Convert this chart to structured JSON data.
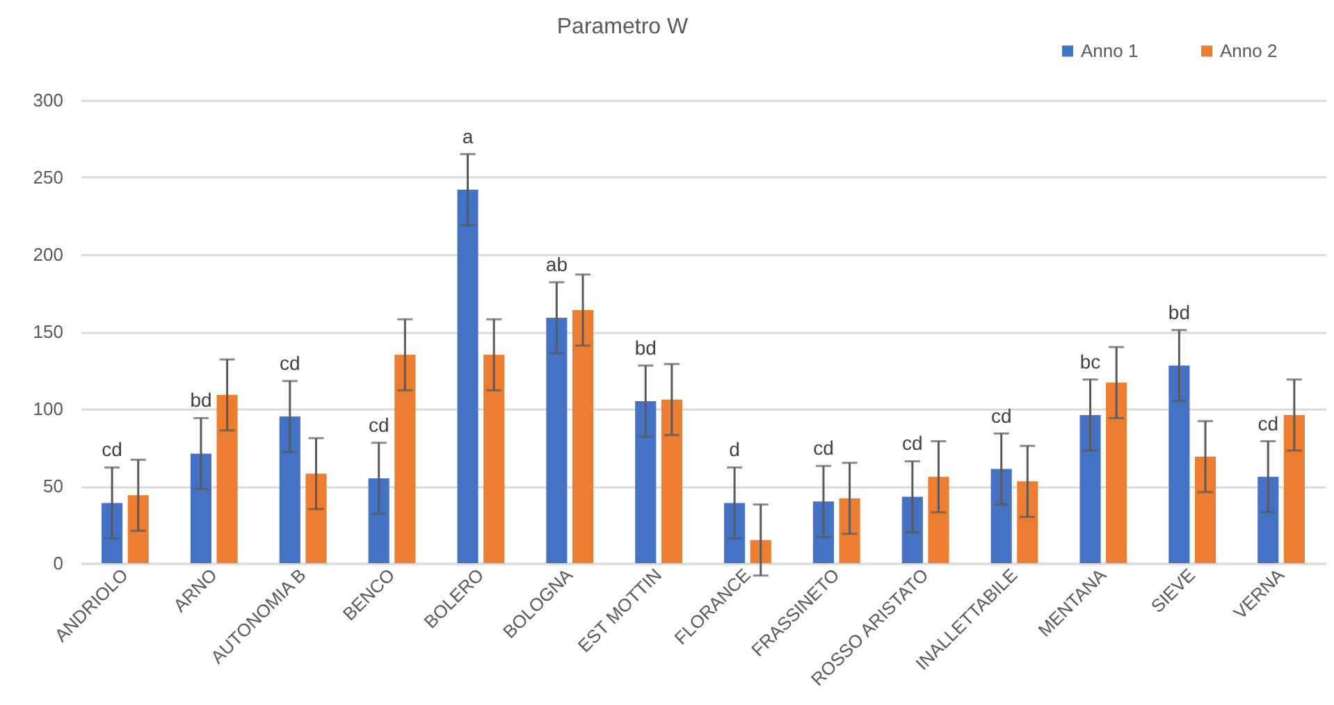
{
  "chart_data": {
    "type": "bar",
    "title": "Parametro W",
    "categories": [
      "ANDRIOLO",
      "ARNO",
      "AUTONOMIA B",
      "BENCO",
      "BOLERO",
      "BOLOGNA",
      "EST MOTTIN",
      "FLORANCE",
      "FRASSINETO",
      "ROSSO ARISTATO",
      "INALLETTABILE",
      "MENTANA",
      "SIEVE",
      "VERNA"
    ],
    "series": [
      {
        "name": "Anno 1",
        "color": "#4472c4",
        "values": [
          39,
          71,
          95,
          55,
          242,
          159,
          105,
          39,
          40,
          43,
          61,
          96,
          128,
          56
        ],
        "errors": [
          23,
          23,
          23,
          23,
          23,
          23,
          23,
          23,
          23,
          23,
          23,
          23,
          23,
          23
        ]
      },
      {
        "name": "Anno 2",
        "color": "#ed7d31",
        "values": [
          44,
          109,
          58,
          135,
          135,
          164,
          106,
          15,
          42,
          56,
          53,
          117,
          69,
          96
        ],
        "errors": [
          23,
          23,
          23,
          23,
          23,
          23,
          23,
          23,
          23,
          23,
          23,
          23,
          23,
          23
        ]
      }
    ],
    "ylim": [
      0,
      300
    ],
    "yticks": [
      0,
      50,
      100,
      150,
      200,
      250,
      300
    ],
    "grid": "y",
    "legend": "top right",
    "annotations": [
      {
        "text": "cd",
        "x": "ANDRIOLO",
        "y": 39
      },
      {
        "text": "bd",
        "x": "ARNO",
        "y": 71
      },
      {
        "text": "cd",
        "x": "AUTONOMIA B",
        "y": 95
      },
      {
        "text": "cd",
        "x": "BENCO",
        "y": 55
      },
      {
        "text": "a",
        "x": "BOLERO",
        "y": 242
      },
      {
        "text": "ab",
        "x": "BOLOGNA",
        "y": 159
      },
      {
        "text": "bd",
        "x": "EST MOTTIN",
        "y": 105
      },
      {
        "text": "d",
        "x": "FLORANCE",
        "y": 39
      },
      {
        "text": "cd",
        "x": "FRASSINETO",
        "y": 40
      },
      {
        "text": "cd",
        "x": "ROSSO ARISTATO",
        "y": 43
      },
      {
        "text": "cd",
        "x": "INALLETTABILE",
        "y": 61
      },
      {
        "text": "bc",
        "x": "MENTANA",
        "y": 96
      },
      {
        "text": "bd",
        "x": "SIEVE",
        "y": 128
      },
      {
        "text": "cd",
        "x": "VERNA",
        "y": 56
      }
    ]
  }
}
